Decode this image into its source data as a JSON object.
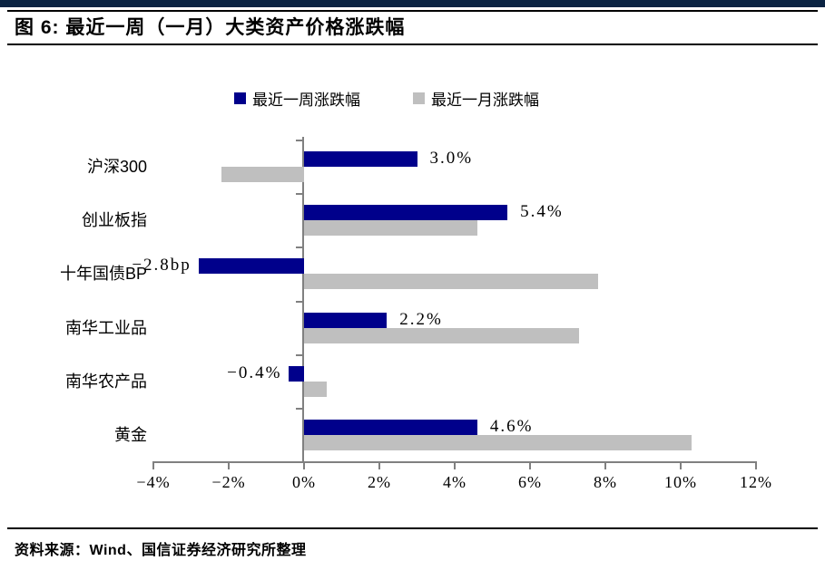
{
  "page": {
    "title": "图 6: 最近一周（一月）大类资产价格涨跌幅",
    "source_note": "资料来源：Wind、国信证券经济研究所整理"
  },
  "colors": {
    "top_band": "#0A2342",
    "week_bar": "#00008B",
    "month_bar": "#BFBFBF",
    "axis": "#808080"
  },
  "chart_data": {
    "type": "bar",
    "orientation": "horizontal",
    "title": "图 6: 最近一周（一月）大类资产价格涨跌幅",
    "categories": [
      "沪深300",
      "创业板指",
      "十年国债BP",
      "南华工业品",
      "南华农产品",
      "黄金"
    ],
    "series": [
      {
        "name": "最近一周涨跌幅",
        "color": "#00008B",
        "values": [
          3.0,
          5.4,
          -2.8,
          2.2,
          -0.4,
          4.6
        ],
        "labels": [
          "3.0%",
          "5.4%",
          "−2.8bp",
          "2.2%",
          "−0.4%",
          "4.6%"
        ]
      },
      {
        "name": "最近一月涨跌幅",
        "color": "#BFBFBF",
        "values": [
          -2.2,
          4.6,
          7.8,
          7.3,
          0.6,
          10.3
        ]
      }
    ],
    "x_axis": {
      "range": [
        -4,
        12
      ],
      "tick_values": [
        -4,
        -2,
        0,
        2,
        4,
        6,
        8,
        10,
        12
      ],
      "tick_labels": [
        "−4%",
        "−2%",
        "0%",
        "2%",
        "4%",
        "6%",
        "8%",
        "10%",
        "12%"
      ]
    },
    "legend_position": "top",
    "grid": false
  }
}
